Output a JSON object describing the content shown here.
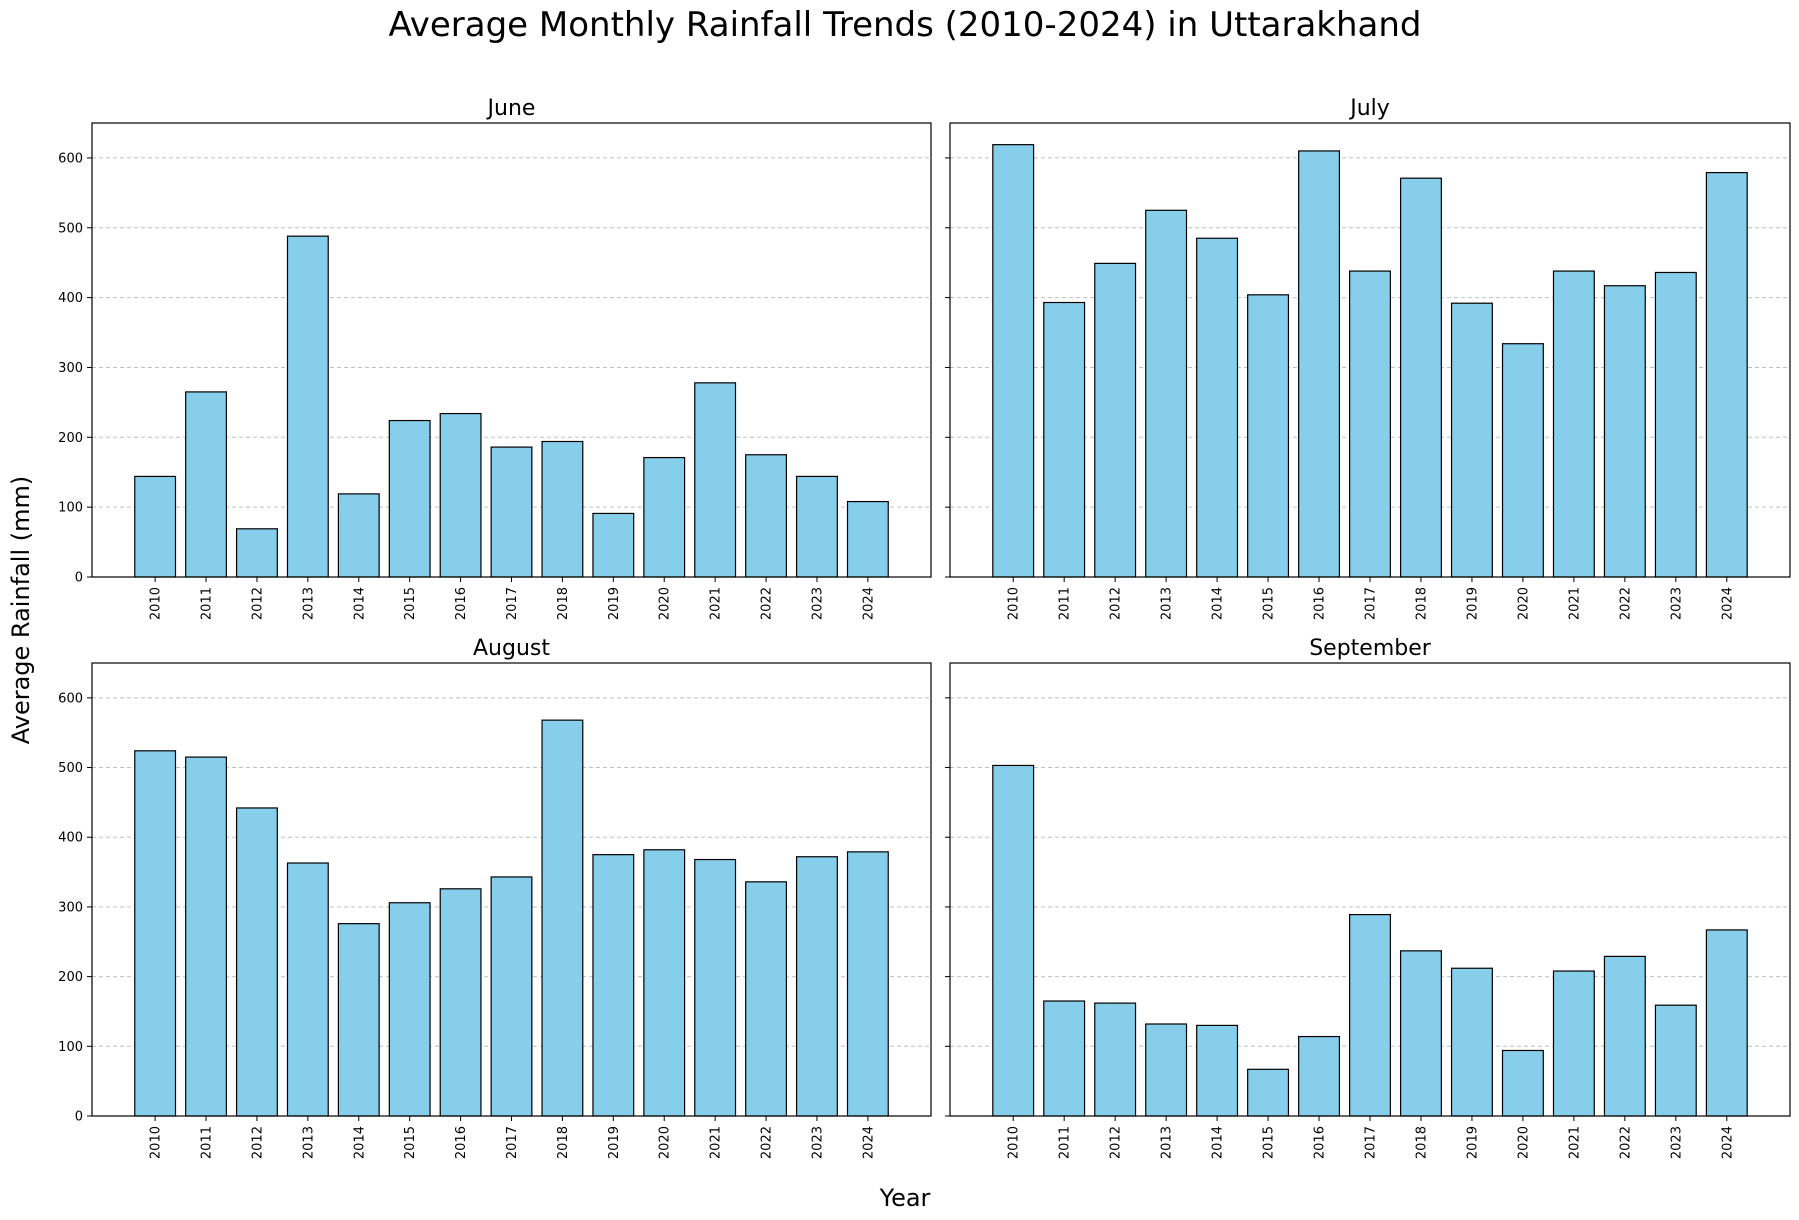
{
  "figure": {
    "title": "Average Monthly Rainfall Trends (2010-2024) in Uttarakhand",
    "xlabel": "Year",
    "ylabel": "Average Rainfall (mm)"
  },
  "chart_data": {
    "type": "bar",
    "categories": [
      "2010",
      "2011",
      "2012",
      "2013",
      "2014",
      "2015",
      "2016",
      "2017",
      "2018",
      "2019",
      "2020",
      "2021",
      "2022",
      "2023",
      "2024"
    ],
    "ylim": [
      0,
      650
    ],
    "yticks": [
      0,
      100,
      200,
      300,
      400,
      500,
      600
    ],
    "grid": "y dashed",
    "bar_color": "#87ceeb",
    "edge_color": "#000000",
    "panels": [
      {
        "title": "June",
        "values": [
          144,
          265,
          69,
          488,
          119,
          224,
          234,
          186,
          194,
          91,
          171,
          278,
          175,
          144,
          108
        ]
      },
      {
        "title": "July",
        "values": [
          619,
          393,
          449,
          525,
          485,
          404,
          610,
          438,
          571,
          392,
          334,
          438,
          417,
          436,
          579
        ]
      },
      {
        "title": "August",
        "values": [
          524,
          515,
          442,
          363,
          276,
          306,
          326,
          343,
          568,
          375,
          382,
          368,
          336,
          372,
          379
        ]
      },
      {
        "title": "September",
        "values": [
          503,
          165,
          162,
          132,
          130,
          67,
          114,
          289,
          237,
          212,
          94,
          208,
          229,
          159,
          267
        ]
      }
    ]
  }
}
